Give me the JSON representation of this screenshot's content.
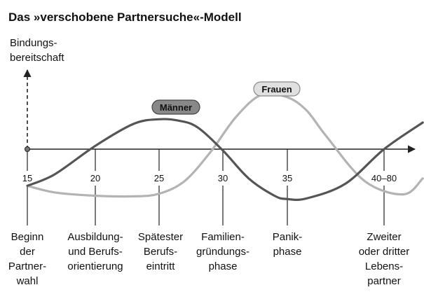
{
  "chart_data": {
    "type": "line",
    "title": "Das »verschobene Partnersuche«-Modell",
    "ylabel": [
      "Bindungs-",
      "bereitschaft"
    ],
    "x_ticks": [
      "15",
      "20",
      "25",
      "30",
      "35",
      "40–80"
    ],
    "phases": [
      {
        "lines": [
          "Beginn",
          "der",
          "Partner-",
          "wahl"
        ]
      },
      {
        "lines": [
          "Ausbildung-",
          "und Berufs-",
          "orientierung"
        ]
      },
      {
        "lines": [
          "Spätester",
          "Berufs-",
          "eintritt"
        ]
      },
      {
        "lines": [
          "Familien-",
          "gründungs-",
          "phase"
        ]
      },
      {
        "lines": [
          "Panik-",
          "phase"
        ]
      },
      {
        "lines": [
          "Zweiter",
          "oder dritter",
          "Lebens-",
          "partner"
        ]
      }
    ],
    "grid": false,
    "series": [
      {
        "name": "Männer",
        "color": "#555555",
        "x": [
          15,
          17,
          20,
          23,
          25,
          26.5,
          28,
          30,
          32,
          34,
          35,
          36,
          38,
          40,
          42
        ],
        "y": [
          -0.55,
          -0.38,
          0.05,
          0.38,
          0.45,
          0.43,
          0.33,
          -0.02,
          -0.44,
          -0.7,
          -0.75,
          -0.74,
          -0.52,
          0.0,
          0.4
        ]
      },
      {
        "name": "Frauen",
        "color": "#b3b3b3",
        "x": [
          15,
          17,
          20,
          23,
          25,
          27,
          29,
          31,
          33,
          35,
          36,
          37,
          39,
          41,
          42
        ],
        "y": [
          -0.55,
          -0.65,
          -0.7,
          -0.71,
          -0.67,
          -0.48,
          -0.05,
          0.48,
          0.82,
          0.78,
          0.58,
          0.2,
          -0.48,
          -0.68,
          -0.44
        ]
      }
    ],
    "colors": {
      "axis": "#222222",
      "men": "#555555",
      "women": "#b3b3b3",
      "men_pill": "#888888",
      "women_pill": "#e0e0e0"
    }
  }
}
